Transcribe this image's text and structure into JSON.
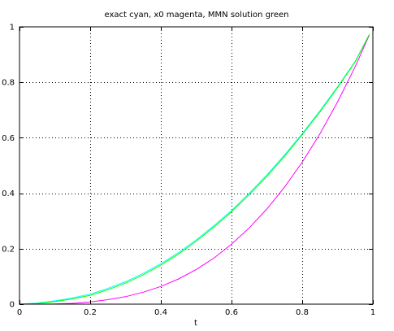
{
  "chart_data": {
    "type": "line",
    "title": "exact cyan, x0 magenta, MMN solution green",
    "xlabel": "t",
    "ylabel": "",
    "xlim": [
      0,
      1
    ],
    "ylim": [
      0,
      1
    ],
    "xticks": [
      0,
      0.2,
      0.4,
      0.6,
      0.8,
      1
    ],
    "xtick_labels": [
      "0",
      "0.2",
      "0.4",
      "0.6",
      "0.8",
      "1"
    ],
    "yticks": [
      0,
      0.2,
      0.4,
      0.6,
      0.8,
      1
    ],
    "ytick_labels": [
      "0",
      "0.2",
      "0.4",
      "0.6",
      "0.8",
      "1"
    ],
    "grid": true,
    "x": [
      0,
      0.05,
      0.1,
      0.15,
      0.2,
      0.25,
      0.3,
      0.35,
      0.4,
      0.45,
      0.5,
      0.55,
      0.6,
      0.65,
      0.7,
      0.75,
      0.8,
      0.85,
      0.9,
      0.95,
      0.99
    ],
    "series": [
      {
        "color": "#00ffff",
        "values": [
          0,
          0.004,
          0.012,
          0.023,
          0.036,
          0.057,
          0.081,
          0.111,
          0.146,
          0.186,
          0.232,
          0.283,
          0.338,
          0.4,
          0.466,
          0.538,
          0.615,
          0.697,
          0.784,
          0.876,
          0.972
        ]
      },
      {
        "color": "#ff00ff",
        "values": [
          0,
          0.0001,
          0.001,
          0.003,
          0.008,
          0.016,
          0.027,
          0.043,
          0.064,
          0.091,
          0.125,
          0.166,
          0.216,
          0.275,
          0.343,
          0.422,
          0.512,
          0.614,
          0.729,
          0.857,
          0.97
        ]
      },
      {
        "color": "#00ff00",
        "values": [
          0,
          0.002,
          0.009,
          0.019,
          0.032,
          0.052,
          0.076,
          0.106,
          0.141,
          0.181,
          0.227,
          0.278,
          0.333,
          0.395,
          0.461,
          0.533,
          0.611,
          0.693,
          0.781,
          0.874,
          0.972
        ]
      }
    ]
  }
}
